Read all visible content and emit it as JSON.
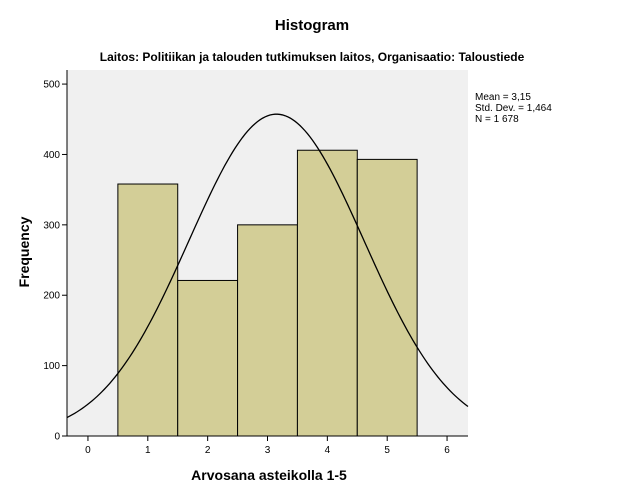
{
  "chart_data": {
    "type": "bar",
    "title": "Histogram",
    "subtitle": "Laitos: Politiikan ja talouden tutkimuksen laitos, Organisaatio: Taloustiede",
    "xlabel": "Arvosana asteikolla 1-5",
    "ylabel": "Frequency",
    "categories": [
      "1",
      "2",
      "3",
      "4",
      "5"
    ],
    "bin_centers": [
      1,
      2,
      3,
      4,
      5
    ],
    "values": [
      358,
      221,
      300,
      406,
      393
    ],
    "xlim": [
      -0.35,
      6.35
    ],
    "ylim": [
      0,
      520
    ],
    "x_ticks": [
      "0",
      "1",
      "2",
      "3",
      "4",
      "5",
      "6"
    ],
    "y_ticks": [
      "0",
      "100",
      "200",
      "300",
      "400",
      "500"
    ],
    "normal_curve": {
      "mean": 3.15,
      "std_dev": 1.464,
      "n": 1678,
      "bin_width": 1
    },
    "stats": [
      "Mean = 3,15",
      "Std. Dev. = 1,464",
      "N = 1 678"
    ],
    "colors": {
      "bar_fill": "#d3ce97",
      "bar_stroke": "#000000",
      "plot_background": "#f0f0f0",
      "curve": "#000000"
    },
    "grid": false,
    "legend": "none"
  }
}
